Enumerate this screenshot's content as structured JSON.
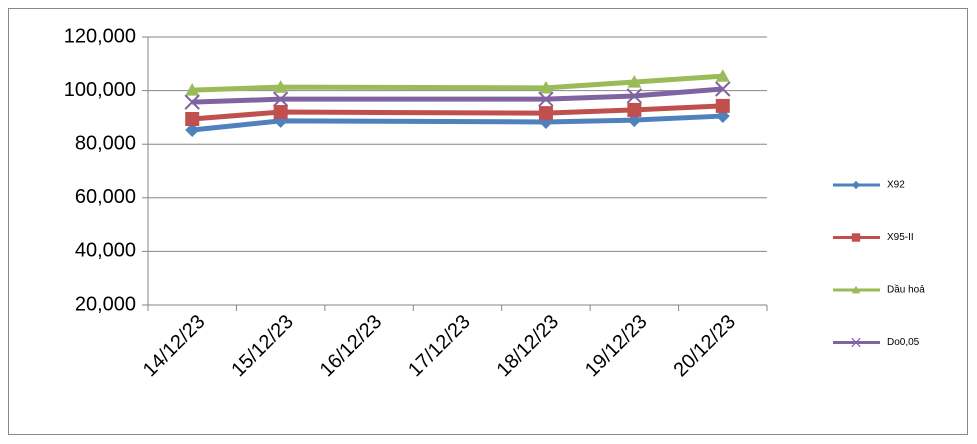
{
  "chart_data": {
    "type": "line",
    "x": [
      "14/12/23",
      "15/12/23",
      "18/12/23",
      "19/12/23",
      "20/12/23"
    ],
    "xticks": [
      "14/12/23",
      "15/12/23",
      "16/12/23",
      "17/12/23",
      "18/12/23",
      "19/12/23",
      "20/12/23"
    ],
    "series": [
      {
        "name": "X92",
        "color": "#4f81bd",
        "marker": "diamond",
        "values": [
          85300,
          88700,
          88300,
          89000,
          90500
        ]
      },
      {
        "name": "X95-II",
        "color": "#c0504d",
        "marker": "square",
        "values": [
          89400,
          92000,
          91600,
          92800,
          94300
        ]
      },
      {
        "name": "Dầu hoả",
        "color": "#9bbb59",
        "marker": "triangle",
        "values": [
          100200,
          101300,
          101000,
          103200,
          105400
        ]
      },
      {
        "name": "Do0,05",
        "color": "#8064a2",
        "marker": "x",
        "values": [
          95700,
          96800,
          96800,
          98000,
          100600
        ]
      }
    ],
    "ylim": [
      20000,
      120000
    ],
    "yticks": [
      {
        "value": 20000,
        "label": "20,000"
      },
      {
        "value": 40000,
        "label": "40,000"
      },
      {
        "value": 60000,
        "label": "60,000"
      },
      {
        "value": 80000,
        "label": "80,000"
      },
      {
        "value": 100000,
        "label": "100,000"
      },
      {
        "value": 120000,
        "label": "120,000"
      }
    ],
    "grid": true,
    "legend": "right"
  }
}
